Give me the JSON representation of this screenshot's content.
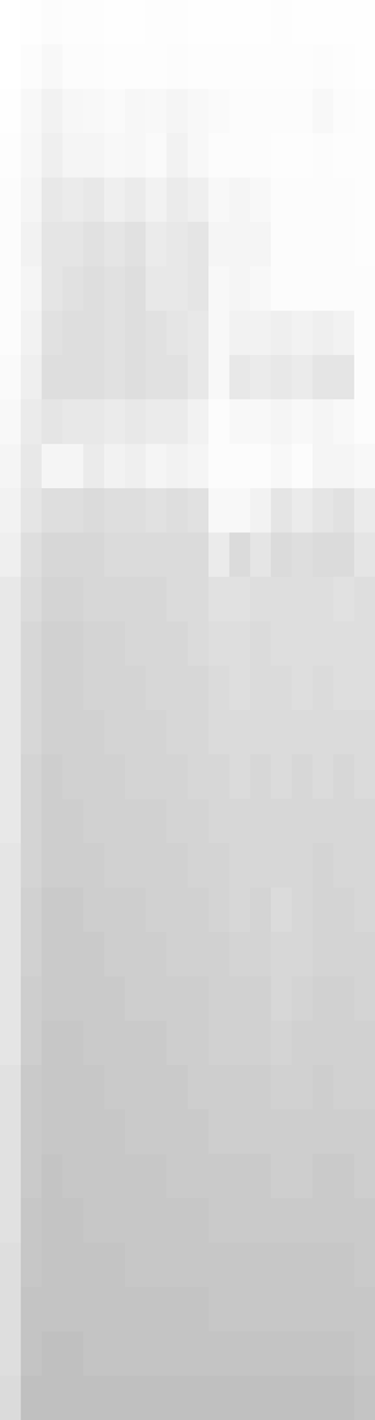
{
  "chart_data": {
    "type": "heatmap",
    "tick_labels": false,
    "color": "#bdbdbd",
    "zlim": [
      0,
      1
    ],
    "cells": [
      [
        0,
        0.02,
        0.05,
        0.03,
        0.03,
        0.02,
        0.02,
        0.03,
        0.03,
        0.02,
        0.02,
        0.02,
        0.02,
        0.03,
        0.02,
        0.02,
        0.02,
        0.02
      ],
      [
        0,
        0.05,
        0.1,
        0.05,
        0.05,
        0.03,
        0.03,
        0.03,
        0.05,
        0.03,
        0.03,
        0.03,
        0.03,
        0.03,
        0.03,
        0.05,
        0.03,
        0.02
      ],
      [
        0.02,
        0.1,
        0.2,
        0.12,
        0.1,
        0.08,
        0.12,
        0.1,
        0.15,
        0.1,
        0.08,
        0.05,
        0.05,
        0.05,
        0.05,
        0.1,
        0.05,
        0.03
      ],
      [
        0.03,
        0.12,
        0.25,
        0.15,
        0.15,
        0.1,
        0.12,
        0.08,
        0.2,
        0.1,
        0.05,
        0.05,
        0.05,
        0.03,
        0.03,
        0.05,
        0.03,
        0.03
      ],
      [
        0.05,
        0.15,
        0.35,
        0.3,
        0.35,
        0.25,
        0.3,
        0.2,
        0.3,
        0.25,
        0.1,
        0.15,
        0.1,
        0.05,
        0.05,
        0.05,
        0.05,
        0.03
      ],
      [
        0.05,
        0.2,
        0.4,
        0.4,
        0.45,
        0.4,
        0.45,
        0.3,
        0.35,
        0.4,
        0.15,
        0.15,
        0.15,
        0.05,
        0.05,
        0.05,
        0.05,
        0.03
      ],
      [
        0.05,
        0.15,
        0.4,
        0.45,
        0.5,
        0.45,
        0.5,
        0.35,
        0.35,
        0.4,
        0.1,
        0.15,
        0.1,
        0.05,
        0.05,
        0.05,
        0.05,
        0.05
      ],
      [
        0.05,
        0.2,
        0.45,
        0.5,
        0.5,
        0.45,
        0.5,
        0.45,
        0.4,
        0.35,
        0.1,
        0.2,
        0.2,
        0.25,
        0.2,
        0.25,
        0.2,
        0.05
      ],
      [
        0.08,
        0.25,
        0.5,
        0.5,
        0.5,
        0.45,
        0.5,
        0.45,
        0.45,
        0.35,
        0.1,
        0.35,
        0.3,
        0.35,
        0.3,
        0.4,
        0.4,
        0.05
      ],
      [
        0.1,
        0.3,
        0.4,
        0.35,
        0.35,
        0.3,
        0.35,
        0.3,
        0.3,
        0.2,
        0.05,
        0.1,
        0.1,
        0.15,
        0.1,
        0.15,
        0.1,
        0.05
      ],
      [
        0.15,
        0.35,
        0.15,
        0.15,
        0.3,
        0.2,
        0.25,
        0.15,
        0.2,
        0.15,
        0.05,
        0.05,
        0.05,
        0.1,
        0.05,
        0.15,
        0.15,
        0.1
      ],
      [
        0.2,
        0.4,
        0.5,
        0.5,
        0.55,
        0.5,
        0.5,
        0.45,
        0.5,
        0.45,
        0.1,
        0.1,
        0.2,
        0.4,
        0.3,
        0.4,
        0.45,
        0.3
      ],
      [
        0.25,
        0.5,
        0.6,
        0.6,
        0.6,
        0.55,
        0.55,
        0.55,
        0.55,
        0.55,
        0.3,
        0.55,
        0.4,
        0.55,
        0.5,
        0.55,
        0.55,
        0.4
      ],
      [
        0.35,
        0.55,
        0.65,
        0.65,
        0.6,
        0.6,
        0.6,
        0.6,
        0.55,
        0.55,
        0.45,
        0.45,
        0.5,
        0.5,
        0.5,
        0.5,
        0.45,
        0.5
      ],
      [
        0.35,
        0.6,
        0.7,
        0.7,
        0.65,
        0.65,
        0.6,
        0.6,
        0.6,
        0.55,
        0.5,
        0.5,
        0.55,
        0.5,
        0.5,
        0.5,
        0.5,
        0.5
      ],
      [
        0.35,
        0.6,
        0.7,
        0.7,
        0.65,
        0.65,
        0.65,
        0.6,
        0.6,
        0.6,
        0.55,
        0.5,
        0.55,
        0.55,
        0.5,
        0.55,
        0.5,
        0.5
      ],
      [
        0.35,
        0.6,
        0.7,
        0.7,
        0.7,
        0.65,
        0.65,
        0.65,
        0.6,
        0.6,
        0.55,
        0.55,
        0.55,
        0.55,
        0.55,
        0.55,
        0.55,
        0.55
      ],
      [
        0.35,
        0.65,
        0.75,
        0.7,
        0.7,
        0.7,
        0.65,
        0.65,
        0.65,
        0.6,
        0.6,
        0.55,
        0.6,
        0.55,
        0.6,
        0.55,
        0.6,
        0.55
      ],
      [
        0.35,
        0.65,
        0.75,
        0.75,
        0.7,
        0.7,
        0.7,
        0.7,
        0.65,
        0.65,
        0.6,
        0.6,
        0.6,
        0.6,
        0.6,
        0.6,
        0.6,
        0.6
      ],
      [
        0.4,
        0.65,
        0.75,
        0.75,
        0.75,
        0.7,
        0.7,
        0.7,
        0.7,
        0.65,
        0.65,
        0.6,
        0.6,
        0.6,
        0.6,
        0.65,
        0.6,
        0.6
      ],
      [
        0.4,
        0.7,
        0.8,
        0.8,
        0.75,
        0.75,
        0.75,
        0.7,
        0.7,
        0.7,
        0.65,
        0.6,
        0.65,
        0.55,
        0.6,
        0.65,
        0.65,
        0.6
      ],
      [
        0.4,
        0.7,
        0.8,
        0.8,
        0.8,
        0.75,
        0.75,
        0.75,
        0.7,
        0.7,
        0.7,
        0.65,
        0.65,
        0.6,
        0.6,
        0.65,
        0.65,
        0.65
      ],
      [
        0.4,
        0.75,
        0.8,
        0.8,
        0.8,
        0.8,
        0.75,
        0.75,
        0.75,
        0.75,
        0.7,
        0.7,
        0.7,
        0.6,
        0.65,
        0.7,
        0.7,
        0.65
      ],
      [
        0.4,
        0.75,
        0.85,
        0.85,
        0.8,
        0.8,
        0.8,
        0.8,
        0.75,
        0.75,
        0.7,
        0.7,
        0.7,
        0.65,
        0.7,
        0.7,
        0.7,
        0.7
      ],
      [
        0.45,
        0.8,
        0.85,
        0.85,
        0.85,
        0.8,
        0.8,
        0.8,
        0.8,
        0.75,
        0.75,
        0.75,
        0.75,
        0.7,
        0.7,
        0.75,
        0.7,
        0.7
      ],
      [
        0.45,
        0.8,
        0.85,
        0.85,
        0.85,
        0.85,
        0.8,
        0.8,
        0.8,
        0.8,
        0.75,
        0.75,
        0.75,
        0.75,
        0.75,
        0.75,
        0.75,
        0.75
      ],
      [
        0.45,
        0.8,
        0.9,
        0.85,
        0.85,
        0.85,
        0.85,
        0.85,
        0.8,
        0.8,
        0.8,
        0.8,
        0.8,
        0.75,
        0.75,
        0.8,
        0.8,
        0.75
      ],
      [
        0.45,
        0.85,
        0.9,
        0.9,
        0.85,
        0.85,
        0.85,
        0.85,
        0.85,
        0.85,
        0.8,
        0.8,
        0.8,
        0.8,
        0.8,
        0.8,
        0.8,
        0.8
      ],
      [
        0.5,
        0.85,
        0.9,
        0.9,
        0.9,
        0.9,
        0.85,
        0.85,
        0.85,
        0.85,
        0.85,
        0.85,
        0.85,
        0.85,
        0.85,
        0.85,
        0.85,
        0.8
      ],
      [
        0.5,
        0.9,
        0.9,
        0.9,
        0.9,
        0.9,
        0.9,
        0.9,
        0.9,
        0.9,
        0.85,
        0.85,
        0.85,
        0.85,
        0.85,
        0.85,
        0.85,
        0.85
      ],
      [
        0.5,
        0.9,
        0.95,
        0.95,
        0.9,
        0.9,
        0.9,
        0.9,
        0.9,
        0.9,
        0.9,
        0.9,
        0.9,
        0.9,
        0.9,
        0.9,
        0.9,
        0.85
      ],
      [
        0.55,
        0.95,
        0.95,
        0.95,
        0.95,
        0.95,
        0.95,
        0.95,
        0.95,
        0.95,
        0.95,
        0.95,
        0.95,
        0.95,
        0.95,
        0.95,
        0.95,
        0.9
      ]
    ]
  }
}
